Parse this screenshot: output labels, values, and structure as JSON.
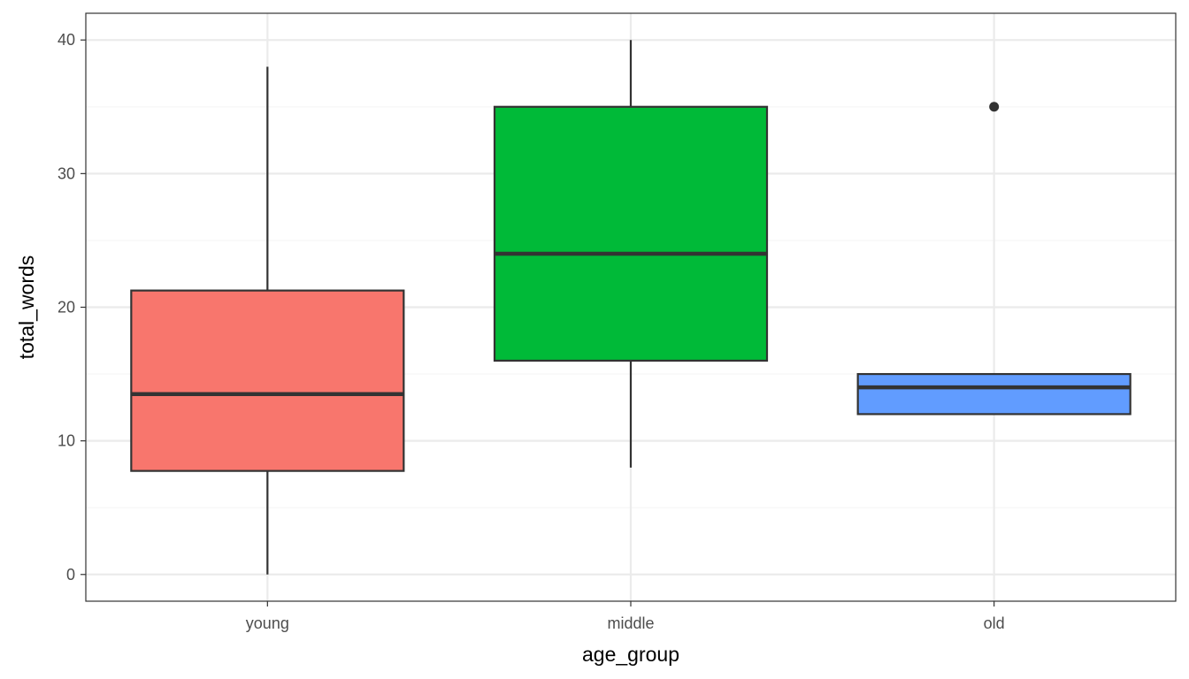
{
  "chart_data": {
    "type": "boxplot",
    "title": "",
    "xlabel": "age_group",
    "ylabel": "total_words",
    "categories": [
      "young",
      "middle",
      "old"
    ],
    "ylim": [
      -2,
      42
    ],
    "yticks": [
      0,
      10,
      20,
      30,
      40
    ],
    "grid": true,
    "legend": "none",
    "boxes": [
      {
        "category": "young",
        "whisker_low": 0,
        "q1": 7.75,
        "median": 13.5,
        "q3": 21.25,
        "whisker_high": 38,
        "outliers": [],
        "color": "#F8766D"
      },
      {
        "category": "middle",
        "whisker_low": 8,
        "q1": 16,
        "median": 24,
        "q3": 35,
        "whisker_high": 40,
        "outliers": [],
        "color": "#00BA38"
      },
      {
        "category": "old",
        "whisker_low": 12,
        "q1": 12,
        "median": 14,
        "q3": 15,
        "whisker_high": 15,
        "outliers": [
          35
        ],
        "color": "#619CFF"
      }
    ]
  },
  "colors": {
    "panel_border": "#333333",
    "grid_major": "#EBEBEB",
    "grid_minor": "#F5F5F5",
    "box_line": "#333333"
  }
}
